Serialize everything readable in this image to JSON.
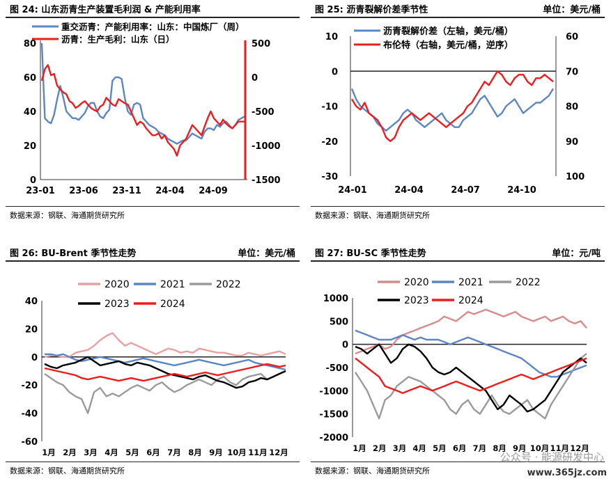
{
  "panels": [
    {
      "title": "图 24:   山东沥青生产装置毛利润 & 产能利用率",
      "unit": "",
      "source": "数据来源：钢联、海通期货研究所"
    },
    {
      "title": "图 25:   沥青裂解价差季节性",
      "unit": "单位：美元/桶",
      "source": "数据来源：钢联、海通期货研究所"
    },
    {
      "title": "图 26:   BU-Brent 季节性走势",
      "unit": "单位：美元/桶",
      "source": "数据来源：钢联、海通期货研究所"
    },
    {
      "title": "图 27:   BU-SC 季节性走势",
      "unit": "单位：元/吨",
      "source": "数据来源：钢联、海通期货研究所"
    }
  ],
  "watermark": "公众号 · 能源研发中心",
  "site": "www.365jz.com",
  "chart_data": [
    {
      "type": "line",
      "x_ticks": [
        "23-01",
        "23-06",
        "23-11",
        "24-04",
        "24-09"
      ],
      "y_left": {
        "range": [
          0,
          80
        ],
        "ticks": [
          0,
          20,
          40,
          60,
          80
        ]
      },
      "y_right": {
        "range": [
          -1500,
          500
        ],
        "ticks": [
          -1500,
          -1000,
          -500,
          0,
          500
        ]
      },
      "legend": "top-left",
      "series": [
        {
          "name": "重交沥青：产能利用率：山东：中国炼厂（周）",
          "axis": "left",
          "color": "#5b86c5",
          "values": [
            80,
            36,
            34,
            33,
            38,
            47,
            55,
            48,
            40,
            38,
            36,
            36,
            35,
            37,
            39,
            43,
            45,
            45,
            40,
            37,
            36,
            39,
            41,
            58,
            60,
            60,
            59,
            48,
            40,
            38,
            44,
            45,
            44,
            36,
            34,
            32,
            31,
            30,
            28,
            27,
            26,
            24,
            23,
            22,
            21,
            22,
            23,
            23,
            25,
            27,
            26,
            25,
            24,
            28,
            30,
            30,
            29,
            32,
            31,
            33,
            34,
            32,
            30,
            32,
            35,
            36,
            37
          ]
        },
        {
          "name": "沥青：生产毛利：山东（日）",
          "axis": "right",
          "color": "#ee1c1c",
          "values": [
            -50,
            120,
            180,
            30,
            50,
            -120,
            -180,
            -220,
            -250,
            -350,
            -380,
            -450,
            -420,
            -380,
            -350,
            -400,
            -450,
            -480,
            -500,
            -430,
            -400,
            -300,
            -350,
            -400,
            -420,
            -320,
            -350,
            -380,
            -400,
            -500,
            -600,
            -700,
            -650,
            -680,
            -750,
            -800,
            -850,
            -850,
            -820,
            -900,
            -850,
            -950,
            -1000,
            -1050,
            -1150,
            -1000,
            -950,
            -900,
            -800,
            -700,
            -750,
            -800,
            -850,
            -720,
            -600,
            -500,
            -600,
            -650,
            -700,
            -620,
            -680,
            -720,
            -750,
            -700,
            -650,
            -650,
            -650
          ]
        }
      ]
    },
    {
      "type": "line",
      "x_ticks": [
        "24-01",
        "24-04",
        "24-07",
        "24-10"
      ],
      "y_left": {
        "range": [
          -30,
          10
        ],
        "ticks": [
          -30,
          -20,
          -10,
          0,
          10
        ]
      },
      "y_right": {
        "range": [
          100,
          60
        ],
        "ticks": [
          100,
          90,
          80,
          70,
          60
        ],
        "reversed": true
      },
      "legend": "top-left",
      "series": [
        {
          "name": "沥青裂解价差（左轴，美元/桶）",
          "axis": "left",
          "color": "#5b86c5",
          "values": [
            -5,
            -8,
            -10,
            -11,
            -12,
            -13,
            -15,
            -16,
            -17,
            -16,
            -15,
            -14,
            -12,
            -11,
            -12,
            -14,
            -15,
            -16,
            -15,
            -14,
            -13,
            -12,
            -14,
            -15,
            -16,
            -16,
            -14,
            -13,
            -12,
            -10,
            -8,
            -7,
            -9,
            -11,
            -13,
            -12,
            -10,
            -9,
            -8,
            -10,
            -12,
            -11,
            -10,
            -9,
            -9,
            -8,
            -7,
            -5
          ]
        },
        {
          "name": "布伦特（右轴，美元/桶，逆序）",
          "axis": "right",
          "color": "#ee1c1c",
          "values": [
            78,
            80,
            81,
            79,
            82,
            83,
            84,
            86,
            89,
            90,
            89,
            86,
            84,
            83,
            82,
            83,
            84,
            83,
            82,
            83,
            84,
            85,
            86,
            85,
            84,
            83,
            82,
            80,
            79,
            77,
            75,
            73,
            74,
            72,
            70,
            71,
            73,
            74,
            72,
            71,
            71,
            73,
            74,
            72,
            72,
            71,
            72,
            73
          ]
        }
      ]
    },
    {
      "type": "line",
      "x_ticks": [
        "1月",
        "2月",
        "3月",
        "4月",
        "5月",
        "6月",
        "7月",
        "8月",
        "9月",
        "10月",
        "11月",
        "12月"
      ],
      "y": {
        "range": [
          -60,
          40
        ],
        "ticks": [
          -60,
          -40,
          -20,
          0,
          20,
          40
        ]
      },
      "legend": "top-center",
      "series": [
        {
          "name": "2020",
          "color": "#e8a0a0",
          "values": [
            0,
            1,
            1,
            0,
            0,
            3,
            4,
            5,
            8,
            12,
            15,
            17,
            12,
            8,
            10,
            8,
            6,
            4,
            2,
            4,
            6,
            5,
            3,
            4,
            3,
            6,
            5,
            4,
            3,
            3,
            2,
            1,
            1,
            3,
            2,
            1,
            2,
            3,
            4,
            2
          ]
        },
        {
          "name": "2021",
          "color": "#5b86c5",
          "values": [
            2,
            2,
            1,
            2,
            0,
            -2,
            -3,
            -2,
            -1,
            0,
            -1,
            -2,
            -3,
            -4,
            -3,
            -2,
            -1,
            -2,
            -3,
            -4,
            -5,
            -6,
            -5,
            -4,
            -3,
            -2,
            -3,
            -4,
            -5,
            -6,
            -5,
            -4,
            -3,
            -2,
            -4,
            -5,
            -6,
            -7,
            -8,
            -9
          ]
        },
        {
          "name": "2022",
          "color": "#9a9a9a",
          "values": [
            -12,
            -15,
            -18,
            -20,
            -25,
            -28,
            -30,
            -40,
            -25,
            -22,
            -28,
            -26,
            -28,
            -25,
            -22,
            -20,
            -22,
            -24,
            -20,
            -18,
            -22,
            -25,
            -23,
            -20,
            -18,
            -16,
            -18,
            -20,
            -16,
            -14,
            -18,
            -20,
            -16,
            -14,
            -13,
            -12,
            -16,
            -14,
            -12,
            -10
          ]
        },
        {
          "name": "2023",
          "color": "#000000",
          "values": [
            -5,
            -7,
            -8,
            -6,
            -5,
            -4,
            -2,
            0,
            -3,
            -6,
            -5,
            -4,
            -3,
            -5,
            -6,
            -4,
            -5,
            -6,
            -8,
            -10,
            -12,
            -13,
            -14,
            -15,
            -16,
            -14,
            -13,
            -15,
            -17,
            -18,
            -20,
            -22,
            -21,
            -18,
            -17,
            -15,
            -16,
            -14,
            -12,
            -10
          ]
        },
        {
          "name": "2024",
          "color": "#ee1c1c",
          "values": [
            -8,
            -9,
            -10,
            -11,
            -12,
            -13,
            -15,
            -16,
            -15,
            -14,
            -15,
            -16,
            -17,
            -16,
            -15,
            -16,
            -17,
            -16,
            -15,
            -14,
            -13,
            -12,
            -13,
            -14,
            -13,
            -12,
            -11,
            -12,
            -13,
            -12,
            -11,
            -10,
            -9,
            -8,
            -7,
            -6,
            -5,
            -6,
            -7,
            -6
          ]
        }
      ]
    },
    {
      "type": "line",
      "x_ticks": [
        "1月",
        "2月",
        "3月",
        "4月",
        "5月",
        "6月",
        "7月",
        "8月",
        "9月",
        "10月",
        "11月",
        "12月"
      ],
      "y": {
        "range": [
          -2000,
          1000
        ],
        "ticks": [
          -2000,
          -1500,
          -1000,
          -500,
          0,
          500,
          1000
        ]
      },
      "legend": "top-center",
      "series": [
        {
          "name": "2020",
          "color": "#d98a8a",
          "values": [
            -200,
            -150,
            -100,
            -50,
            0,
            -100,
            -50,
            100,
            200,
            250,
            300,
            350,
            400,
            450,
            500,
            600,
            550,
            500,
            600,
            700,
            650,
            700,
            750,
            700,
            650,
            600,
            650,
            700,
            600,
            550,
            500,
            550,
            600,
            500,
            550,
            600,
            500,
            450,
            500,
            350
          ]
        },
        {
          "name": "2021",
          "color": "#5b86c5",
          "values": [
            300,
            250,
            200,
            150,
            100,
            100,
            100,
            150,
            200,
            150,
            100,
            150,
            100,
            100,
            100,
            50,
            0,
            50,
            100,
            150,
            100,
            50,
            0,
            -50,
            -100,
            -150,
            -200,
            -250,
            -300,
            -400,
            -500,
            -600,
            -650,
            -700,
            -700,
            -650,
            -600,
            -550,
            -500,
            -450
          ]
        },
        {
          "name": "2022",
          "color": "#9a9a9a",
          "values": [
            -600,
            -800,
            -1000,
            -1300,
            -1600,
            -1200,
            -1100,
            -900,
            -800,
            -700,
            -750,
            -800,
            -900,
            -1000,
            -1100,
            -1200,
            -1400,
            -1500,
            -1300,
            -1200,
            -1400,
            -1500,
            -1300,
            -1100,
            -1300,
            -1450,
            -1500,
            -1400,
            -1300,
            -1200,
            -1400,
            -1500,
            -1600,
            -1300,
            -1100,
            -900,
            -700,
            -500,
            -300,
            -200
          ]
        },
        {
          "name": "2023",
          "color": "#000000",
          "values": [
            -50,
            -100,
            -200,
            -100,
            0,
            -200,
            -400,
            -300,
            -100,
            0,
            -50,
            -150,
            -300,
            -500,
            -600,
            -650,
            -600,
            -500,
            -600,
            -700,
            -800,
            -900,
            -1000,
            -1200,
            -1400,
            -1300,
            -1100,
            -1200,
            -1300,
            -1450,
            -1400,
            -1300,
            -1200,
            -1000,
            -800,
            -600,
            -500,
            -400,
            -300,
            -400
          ]
        },
        {
          "name": "2024",
          "color": "#ee1c1c",
          "values": [
            -300,
            -400,
            -500,
            -600,
            -700,
            -900,
            -950,
            -1000,
            -1050,
            -1000,
            -950,
            -900,
            -950,
            -1000,
            -950,
            -900,
            -850,
            -800,
            -850,
            -900,
            -950,
            -1000,
            -950,
            -900,
            -850,
            -800,
            -750,
            -700,
            -650,
            -700,
            -750,
            -700,
            -650,
            -600,
            -550,
            -500,
            -450,
            -400,
            -350,
            -300
          ]
        }
      ]
    }
  ]
}
